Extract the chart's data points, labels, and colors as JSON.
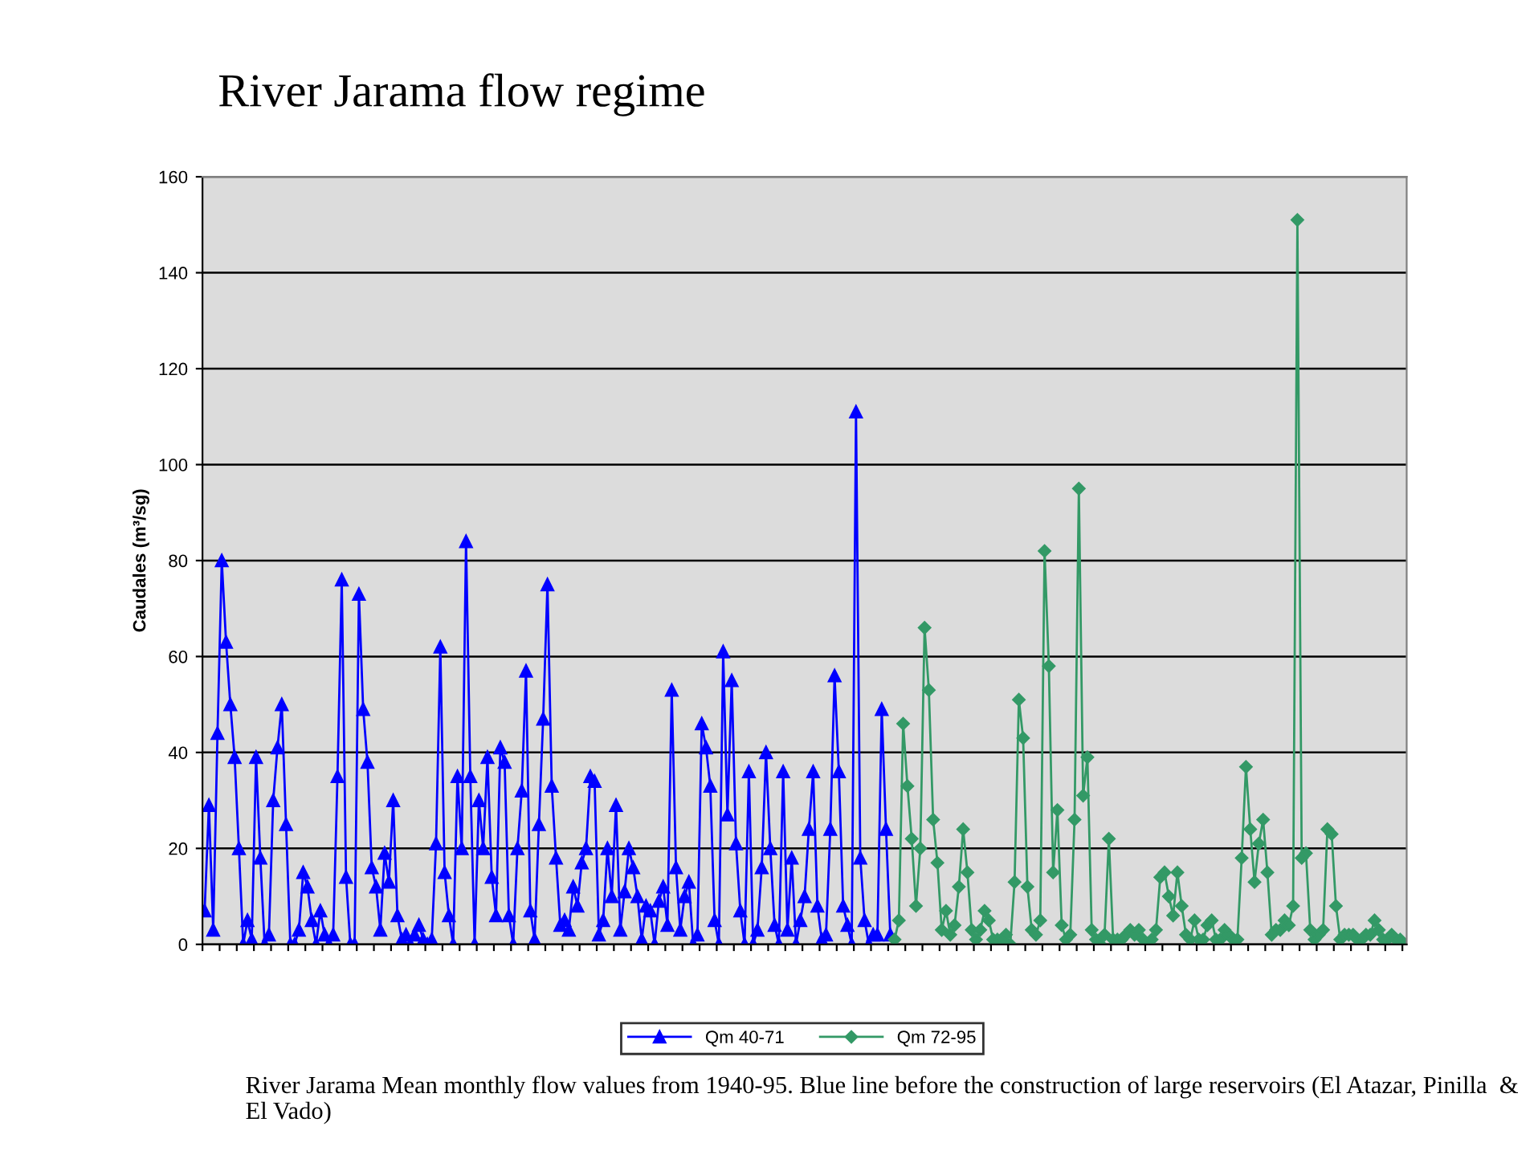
{
  "chart_data": {
    "type": "line",
    "title": "River Jarama flow regime",
    "ylabel": "Caudales (m³/sg)",
    "annotations": [
      "River Jarama Mean monthly flow values from 1940-95. Blue line before the construction of large reservoirs (El Atazar, Pinilla  & El Vado)"
    ],
    "categories": [
      null,
      null,
      null,
      null,
      null,
      null,
      null,
      null,
      null,
      null,
      null,
      null,
      null,
      null,
      null,
      null,
      null,
      null,
      null,
      null,
      null,
      null,
      null,
      null,
      null,
      null,
      null,
      null,
      null,
      null,
      null,
      null,
      null,
      null,
      null,
      null,
      null,
      null,
      null,
      null,
      null,
      null,
      null,
      null,
      null,
      null,
      null,
      null,
      null,
      null,
      null,
      null,
      null,
      null,
      null,
      null,
      null,
      null,
      null,
      null,
      null,
      null,
      null,
      null,
      null,
      null,
      null,
      null,
      null,
      null,
      null,
      null,
      null,
      null,
      null,
      null,
      null,
      null,
      null,
      null,
      null,
      null,
      null,
      null,
      null,
      null,
      null,
      null,
      null,
      null,
      null,
      null,
      null,
      null,
      null,
      null,
      null,
      null,
      null,
      null,
      null,
      null,
      null,
      null,
      null,
      null,
      null,
      null,
      null,
      null,
      null,
      null,
      null,
      null,
      null,
      null,
      null,
      null,
      null,
      null,
      null,
      null,
      null,
      null,
      null,
      null,
      null,
      null,
      null,
      null,
      null,
      null,
      null,
      null,
      null,
      null,
      null,
      null,
      null,
      null,
      null,
      null,
      null,
      null,
      null,
      null,
      null,
      null,
      null,
      null,
      null,
      null,
      null,
      null,
      null,
      null,
      null,
      null,
      null,
      null,
      null,
      null,
      null,
      null,
      null,
      null,
      null,
      null,
      null,
      null,
      null,
      null,
      null,
      null,
      null,
      null,
      null,
      null,
      null,
      null,
      null,
      null,
      null,
      null,
      null,
      null,
      null,
      null,
      null,
      null,
      null,
      null,
      null,
      null,
      null,
      null,
      null,
      null,
      null,
      null,
      null,
      null,
      null,
      null,
      null,
      null,
      null,
      null,
      null,
      null,
      null,
      null,
      null,
      null,
      null,
      null,
      null,
      null,
      null,
      null,
      null,
      null,
      null,
      null,
      null,
      null,
      null,
      null,
      null,
      null,
      null,
      null,
      null,
      null,
      null,
      null,
      null,
      null,
      null,
      null,
      null,
      null,
      null,
      null,
      null,
      null,
      null,
      null,
      null,
      null,
      null,
      null,
      null,
      null,
      null,
      null,
      null,
      null,
      null,
      null,
      null,
      null,
      null,
      null,
      null,
      null,
      null,
      null,
      null,
      null,
      null,
      null,
      null,
      null,
      null,
      null,
      null,
      null,
      null,
      null,
      null
    ],
    "series": [
      {
        "name": "Qm 40-71",
        "color": "#0000ff",
        "marker": "triangle",
        "values": [
          7,
          29,
          3,
          44,
          80,
          63,
          50,
          39,
          20,
          0,
          5,
          1,
          39,
          18,
          0,
          2,
          30,
          41,
          50,
          25,
          0,
          0,
          3,
          15,
          12,
          5,
          0,
          7,
          2,
          0,
          2,
          35,
          76,
          14,
          0,
          0,
          73,
          49,
          38,
          16,
          12,
          3,
          19,
          13,
          30,
          6,
          1,
          2,
          0,
          2,
          4,
          1,
          0,
          1,
          21,
          62,
          15,
          6,
          0,
          35,
          20,
          84,
          35,
          0,
          30,
          20,
          39,
          14,
          6,
          41,
          38,
          6,
          0,
          20,
          32,
          57,
          7,
          1,
          25,
          47,
          75,
          33,
          18,
          4,
          5,
          3,
          12,
          8,
          17,
          20,
          35,
          34,
          2,
          5,
          20,
          10,
          29,
          3,
          11,
          20,
          16,
          10,
          1,
          8,
          7,
          0,
          9,
          12,
          4,
          53,
          16,
          3,
          10,
          13,
          0,
          2,
          46,
          41,
          33,
          5,
          0,
          61,
          27,
          55,
          21,
          7,
          0,
          36,
          0,
          3,
          16,
          40,
          20,
          4,
          0,
          36,
          3,
          18,
          0,
          5,
          10,
          24,
          36,
          8,
          1,
          2,
          24,
          56,
          36,
          8,
          4,
          0,
          111,
          18,
          5,
          0,
          2,
          2,
          49,
          24,
          2,
          null,
          null,
          null,
          null,
          null,
          null,
          null,
          null,
          null,
          null,
          null,
          null,
          null,
          null,
          null,
          null,
          null,
          null,
          null,
          null,
          null,
          null,
          null,
          null,
          null,
          null,
          null,
          null,
          null,
          null,
          null,
          null,
          null,
          null,
          null,
          null,
          null,
          null,
          null,
          null,
          null,
          null,
          null,
          null,
          null,
          null,
          null,
          null,
          null,
          null,
          null,
          null,
          null,
          null,
          null,
          null,
          null,
          null,
          null,
          null,
          null,
          null,
          null,
          null,
          null,
          null,
          null,
          null,
          null,
          null,
          null,
          null,
          null,
          null,
          null,
          null,
          null,
          null,
          null,
          null,
          null,
          null,
          null,
          null,
          null,
          null,
          null,
          null,
          null,
          null,
          null,
          null,
          null,
          null,
          null,
          null,
          null,
          null,
          null,
          null,
          null,
          null,
          null,
          null,
          null,
          null,
          null,
          null,
          null,
          null,
          null,
          null,
          null,
          null,
          null,
          null,
          null,
          null,
          null,
          null
        ]
      },
      {
        "name": "Qm 72-95",
        "color": "#339966",
        "marker": "diamond",
        "values": [
          null,
          null,
          null,
          null,
          null,
          null,
          null,
          null,
          null,
          null,
          null,
          null,
          null,
          null,
          null,
          null,
          null,
          null,
          null,
          null,
          null,
          null,
          null,
          null,
          null,
          null,
          null,
          null,
          null,
          null,
          null,
          null,
          null,
          null,
          null,
          null,
          null,
          null,
          null,
          null,
          null,
          null,
          null,
          null,
          null,
          null,
          null,
          null,
          null,
          null,
          null,
          null,
          null,
          null,
          null,
          null,
          null,
          null,
          null,
          null,
          null,
          null,
          null,
          null,
          null,
          null,
          null,
          null,
          null,
          null,
          null,
          null,
          null,
          null,
          null,
          null,
          null,
          null,
          null,
          null,
          null,
          null,
          null,
          null,
          null,
          null,
          null,
          null,
          null,
          null,
          null,
          null,
          null,
          null,
          null,
          null,
          null,
          null,
          null,
          null,
          null,
          null,
          null,
          null,
          null,
          null,
          null,
          null,
          null,
          null,
          null,
          null,
          null,
          null,
          null,
          null,
          null,
          null,
          null,
          null,
          null,
          null,
          null,
          null,
          null,
          null,
          null,
          null,
          null,
          null,
          null,
          null,
          null,
          null,
          null,
          null,
          null,
          null,
          null,
          null,
          null,
          null,
          null,
          null,
          null,
          null,
          null,
          null,
          null,
          null,
          null,
          null,
          null,
          null,
          null,
          null,
          null,
          null,
          null,
          null,
          null,
          1,
          5,
          46,
          33,
          22,
          8,
          20,
          66,
          53,
          26,
          17,
          3,
          7,
          2,
          4,
          12,
          24,
          15,
          3,
          1,
          3,
          7,
          5,
          1,
          1,
          1,
          2,
          0,
          13,
          51,
          43,
          12,
          3,
          2,
          5,
          82,
          58,
          15,
          28,
          4,
          1,
          2,
          26,
          95,
          31,
          39,
          3,
          1,
          0,
          2,
          22,
          1,
          1,
          1,
          2,
          3,
          2,
          3,
          1,
          0,
          1,
          3,
          14,
          15,
          10,
          6,
          15,
          8,
          2,
          1,
          5,
          1,
          1,
          4,
          5,
          1,
          1,
          3,
          2,
          1,
          1,
          18,
          37,
          24,
          13,
          21,
          26,
          15,
          2,
          3,
          3,
          5,
          4,
          8,
          151,
          18,
          19,
          3,
          1,
          2,
          3,
          24,
          23,
          8,
          1,
          2,
          2,
          2,
          1,
          1,
          2,
          2,
          5,
          3,
          1,
          1,
          2,
          1,
          1,
          0
        ]
      }
    ],
    "ylim": [
      0,
      160
    ],
    "yticks": [
      0,
      20,
      40,
      60,
      80,
      100,
      120,
      140,
      160
    ],
    "grid": "y",
    "legend": "bottom",
    "tick_labels": "y",
    "line_style": "solid"
  }
}
